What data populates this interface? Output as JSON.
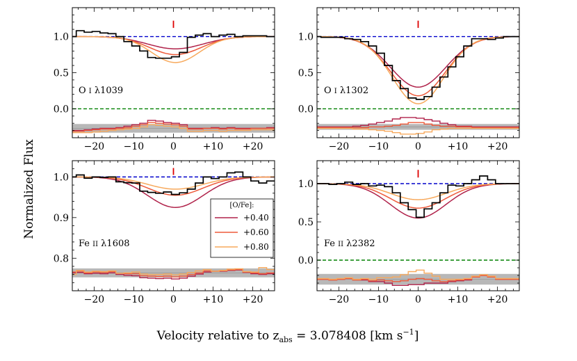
{
  "figure": {
    "ylabel": "Normalized Flux",
    "xlabel": "Velocity relative to z",
    "xlabel_sub": "abs",
    "xlabel_rest": " = 3.078408 [km s",
    "xlabel_sup": "−1",
    "xlabel_end": "]"
  },
  "legend": {
    "title": "[O/Fe]:",
    "entries": [
      "+0.40",
      "+0.60",
      "+0.80"
    ]
  },
  "colors": {
    "data": "#000000",
    "continuum": "#0000cc",
    "zero": "#008000",
    "marker": "#dd0000",
    "model_040": "#b0224a",
    "model_060": "#ee5a3a",
    "model_080": "#f7a95c",
    "residual_band": "#b8b8b8"
  },
  "chart_data": [
    {
      "type": "line",
      "panel": "O I 1039",
      "label_ion": "O ",
      "label_state": "I",
      "label_lambda": "λ1039",
      "xlim": [
        -25.5,
        25.5
      ],
      "ylim": [
        -0.4,
        1.4
      ],
      "yticks": [
        0.0,
        0.5,
        1.0
      ],
      "ytick_labels": [
        "0.0",
        "0.5",
        "1.0"
      ],
      "xticks": [
        -20,
        -10,
        0,
        10,
        20
      ],
      "xtick_labels": [
        "−20",
        "−10",
        "0",
        "+10",
        "+20"
      ],
      "continuum": 1.0,
      "zero": 0.0,
      "marker_v": 0,
      "marker_y": [
        1.12,
        1.22
      ],
      "data_x": [
        -25.5,
        -23.5,
        -21.5,
        -19.5,
        -17.5,
        -15.5,
        -13.5,
        -11.5,
        -9.5,
        -7.5,
        -5.5,
        -3.5,
        -1.5,
        0.5,
        2.5,
        4.5,
        6.5,
        8.5,
        10.5,
        12.5,
        14.5,
        16.5,
        18.5,
        20.5,
        22.5,
        24.5
      ],
      "data_y": [
        1.0,
        1.08,
        1.06,
        1.07,
        1.05,
        1.04,
        1.0,
        0.93,
        0.87,
        0.8,
        0.71,
        0.7,
        0.7,
        0.72,
        0.78,
        0.99,
        1.02,
        1.04,
        1.0,
        1.02,
        1.03,
        1.0,
        1.01,
        1.01,
        1.01,
        1.0
      ],
      "model_center": 0.5,
      "models": [
        {
          "name": "+0.40",
          "depth": 0.17,
          "sigma": 7.0
        },
        {
          "name": "+0.60",
          "depth": 0.25,
          "sigma": 6.5
        },
        {
          "name": "+0.80",
          "depth": 0.36,
          "sigma": 6.0
        }
      ],
      "residual_band": [
        -0.33,
        -0.21
      ],
      "residual_center": -0.27,
      "residuals": [
        {
          "name": "+0.40",
          "values": [
            -0.3,
            -0.3,
            -0.29,
            -0.28,
            -0.27,
            -0.27,
            -0.26,
            -0.24,
            -0.22,
            -0.2,
            -0.16,
            -0.17,
            -0.19,
            -0.2,
            -0.22,
            -0.27,
            -0.27,
            -0.27,
            -0.26,
            -0.27,
            -0.26,
            -0.27,
            -0.27,
            -0.27,
            -0.27,
            -0.26
          ]
        },
        {
          "name": "+0.60",
          "values": [
            -0.31,
            -0.31,
            -0.3,
            -0.29,
            -0.28,
            -0.28,
            -0.27,
            -0.26,
            -0.24,
            -0.22,
            -0.19,
            -0.2,
            -0.21,
            -0.22,
            -0.24,
            -0.28,
            -0.28,
            -0.27,
            -0.27,
            -0.28,
            -0.27,
            -0.28,
            -0.28,
            -0.27,
            -0.27,
            -0.27
          ]
        },
        {
          "name": "+0.80",
          "values": [
            -0.33,
            -0.33,
            -0.33,
            -0.32,
            -0.31,
            -0.3,
            -0.29,
            -0.28,
            -0.27,
            -0.25,
            -0.22,
            -0.23,
            -0.24,
            -0.25,
            -0.27,
            -0.31,
            -0.31,
            -0.3,
            -0.3,
            -0.31,
            -0.3,
            -0.3,
            -0.3,
            -0.29,
            -0.29,
            -0.29
          ]
        }
      ]
    },
    {
      "type": "line",
      "panel": "O I 1302",
      "label_ion": "O ",
      "label_state": "I",
      "label_lambda": "λ1302",
      "xlim": [
        -25.5,
        25.5
      ],
      "ylim": [
        -0.4,
        1.4
      ],
      "yticks": [
        0.0,
        0.5,
        1.0
      ],
      "ytick_labels": [
        "0.0",
        "0.5",
        "1.0"
      ],
      "xticks": [
        -20,
        -10,
        0,
        10,
        20
      ],
      "xtick_labels": [
        "−20",
        "−10",
        "0",
        "+10",
        "+20"
      ],
      "continuum": 1.0,
      "zero": 0.0,
      "marker_v": 0,
      "marker_y": [
        1.12,
        1.22
      ],
      "data_x": [
        -25.5,
        -23.5,
        -21.5,
        -19.5,
        -17.5,
        -15.5,
        -13.5,
        -11.5,
        -9.5,
        -7.5,
        -5.5,
        -3.5,
        -1.5,
        0.5,
        2.5,
        4.5,
        6.5,
        8.5,
        10.5,
        12.5,
        14.5,
        16.5,
        18.5,
        20.5,
        22.5,
        24.5
      ],
      "data_y": [
        1.0,
        0.99,
        0.99,
        0.99,
        0.97,
        0.96,
        0.93,
        0.87,
        0.77,
        0.6,
        0.39,
        0.28,
        0.15,
        0.13,
        0.17,
        0.3,
        0.44,
        0.58,
        0.72,
        0.87,
        0.97,
        0.97,
        0.96,
        0.98,
        1.0,
        1.0
      ],
      "model_center": 0.0,
      "models": [
        {
          "name": "+0.40",
          "depth": 0.7,
          "sigma": 7.0
        },
        {
          "name": "+0.60",
          "depth": 0.82,
          "sigma": 6.8
        },
        {
          "name": "+0.80",
          "depth": 0.93,
          "sigma": 6.5
        }
      ],
      "residual_band": [
        -0.29,
        -0.21
      ],
      "residual_center": -0.25,
      "residuals": [
        {
          "name": "+0.40",
          "values": [
            -0.25,
            -0.25,
            -0.25,
            -0.25,
            -0.25,
            -0.24,
            -0.23,
            -0.21,
            -0.19,
            -0.17,
            -0.14,
            -0.12,
            -0.12,
            -0.13,
            -0.15,
            -0.17,
            -0.2,
            -0.22,
            -0.24,
            -0.24,
            -0.25,
            -0.25,
            -0.25,
            -0.25,
            -0.25,
            -0.25
          ]
        },
        {
          "name": "+0.60",
          "values": [
            -0.26,
            -0.26,
            -0.26,
            -0.26,
            -0.26,
            -0.26,
            -0.26,
            -0.25,
            -0.25,
            -0.24,
            -0.23,
            -0.21,
            -0.19,
            -0.19,
            -0.21,
            -0.23,
            -0.24,
            -0.24,
            -0.25,
            -0.25,
            -0.26,
            -0.26,
            -0.26,
            -0.26,
            -0.26,
            -0.26
          ]
        },
        {
          "name": "+0.80",
          "values": [
            -0.27,
            -0.27,
            -0.27,
            -0.27,
            -0.27,
            -0.28,
            -0.28,
            -0.29,
            -0.3,
            -0.31,
            -0.33,
            -0.35,
            -0.35,
            -0.34,
            -0.32,
            -0.29,
            -0.28,
            -0.27,
            -0.27,
            -0.27,
            -0.27,
            -0.27,
            -0.27,
            -0.27,
            -0.27,
            -0.27
          ]
        }
      ]
    },
    {
      "type": "line",
      "panel": "Fe II 1608",
      "label_ion": "Fe ",
      "label_state": "II",
      "label_lambda": "λ1608",
      "xlim": [
        -25.5,
        25.5
      ],
      "ylim": [
        0.72,
        1.04
      ],
      "yticks": [
        0.8,
        0.9,
        1.0
      ],
      "ytick_labels": [
        "0.8",
        "0.9",
        "1.0"
      ],
      "xticks": [
        -20,
        -10,
        0,
        10,
        20
      ],
      "xtick_labels": [
        "−20",
        "−10",
        "0",
        "+10",
        "+20"
      ],
      "continuum": 1.0,
      "zero": null,
      "marker_v": 0,
      "marker_y": [
        1.005,
        1.022
      ],
      "data_x": [
        -25.5,
        -23.5,
        -21.5,
        -19.5,
        -17.5,
        -15.5,
        -13.5,
        -11.5,
        -9.5,
        -7.5,
        -5.5,
        -3.5,
        -1.5,
        0.5,
        2.5,
        4.5,
        6.5,
        8.5,
        10.5,
        12.5,
        14.5,
        16.5,
        18.5,
        20.5,
        22.5,
        24.5
      ],
      "data_y": [
        1.0,
        1.005,
        0.997,
        1.0,
        0.999,
        1.0,
        0.988,
        0.986,
        0.985,
        0.965,
        0.962,
        0.96,
        0.963,
        0.957,
        0.961,
        0.97,
        0.985,
        1.0,
        0.996,
        1.0,
        1.01,
        1.012,
        1.0,
        0.99,
        0.985,
        0.99
      ],
      "model_center": 0.5,
      "models": [
        {
          "name": "+0.40",
          "depth": 0.075,
          "sigma": 7.0
        },
        {
          "name": "+0.60",
          "depth": 0.045,
          "sigma": 7.0
        },
        {
          "name": "+0.80",
          "depth": 0.03,
          "sigma": 7.0
        }
      ],
      "residual_band": [
        0.753,
        0.775
      ],
      "residual_center": 0.764,
      "residuals": [
        {
          "name": "+0.40",
          "values": [
            0.764,
            0.765,
            0.762,
            0.763,
            0.762,
            0.764,
            0.76,
            0.758,
            0.757,
            0.752,
            0.751,
            0.75,
            0.751,
            0.749,
            0.751,
            0.756,
            0.761,
            0.766,
            0.768,
            0.768,
            0.77,
            0.771,
            0.765,
            0.762,
            0.76,
            0.762
          ]
        },
        {
          "name": "+0.60",
          "values": [
            0.766,
            0.768,
            0.764,
            0.766,
            0.765,
            0.767,
            0.763,
            0.762,
            0.762,
            0.757,
            0.756,
            0.755,
            0.756,
            0.754,
            0.756,
            0.76,
            0.764,
            0.769,
            0.768,
            0.769,
            0.771,
            0.772,
            0.766,
            0.764,
            0.762,
            0.764
          ]
        },
        {
          "name": "+0.80",
          "values": [
            0.76,
            0.77,
            0.766,
            0.768,
            0.767,
            0.769,
            0.763,
            0.764,
            0.766,
            0.761,
            0.76,
            0.76,
            0.761,
            0.759,
            0.761,
            0.765,
            0.769,
            0.772,
            0.768,
            0.77,
            0.773,
            0.774,
            0.767,
            0.766,
            0.777,
            0.772
          ]
        }
      ]
    },
    {
      "type": "line",
      "panel": "Fe II 2382",
      "label_ion": "Fe ",
      "label_state": "II",
      "label_lambda": "λ2382",
      "xlim": [
        -25.5,
        25.5
      ],
      "ylim": [
        -0.4,
        1.3
      ],
      "yticks": [
        0.0,
        0.5,
        1.0
      ],
      "ytick_labels": [
        "0.0",
        "0.5",
        "1.0"
      ],
      "xticks": [
        -20,
        -10,
        0,
        10,
        20
      ],
      "xtick_labels": [
        "−20",
        "−10",
        "0",
        "+10",
        "+20"
      ],
      "continuum": 1.0,
      "zero": 0.0,
      "marker_v": 0,
      "marker_y": [
        1.08,
        1.18
      ],
      "data_x": [
        -25.5,
        -23.5,
        -21.5,
        -19.5,
        -17.5,
        -15.5,
        -13.5,
        -11.5,
        -9.5,
        -7.5,
        -5.5,
        -3.5,
        -1.5,
        0.5,
        2.5,
        4.5,
        6.5,
        8.5,
        10.5,
        12.5,
        14.5,
        16.5,
        18.5,
        20.5,
        22.5,
        24.5
      ],
      "data_y": [
        1.0,
        1.0,
        0.99,
        1.0,
        1.02,
        0.99,
        1.0,
        0.97,
        0.98,
        0.96,
        0.88,
        0.75,
        0.66,
        0.56,
        0.67,
        0.75,
        0.88,
        0.98,
        0.97,
        1.0,
        1.05,
        1.1,
        1.05,
        1.0,
        1.0,
        1.0
      ],
      "model_center": 0.0,
      "models": [
        {
          "name": "+0.40",
          "depth": 0.45,
          "sigma": 7.0
        },
        {
          "name": "+0.60",
          "depth": 0.32,
          "sigma": 7.0
        },
        {
          "name": "+0.80",
          "depth": 0.21,
          "sigma": 7.0
        }
      ],
      "residual_band": [
        -0.32,
        -0.18
      ],
      "residual_center": -0.25,
      "residuals": [
        {
          "name": "+0.40",
          "values": [
            -0.25,
            -0.25,
            -0.26,
            -0.25,
            -0.24,
            -0.26,
            -0.26,
            -0.28,
            -0.28,
            -0.3,
            -0.33,
            -0.33,
            -0.32,
            -0.32,
            -0.3,
            -0.3,
            -0.3,
            -0.28,
            -0.27,
            -0.26,
            -0.22,
            -0.2,
            -0.22,
            -0.25,
            -0.25,
            -0.25
          ]
        },
        {
          "name": "+0.60",
          "values": [
            -0.25,
            -0.25,
            -0.26,
            -0.25,
            -0.24,
            -0.26,
            -0.25,
            -0.27,
            -0.26,
            -0.27,
            -0.28,
            -0.27,
            -0.25,
            -0.24,
            -0.25,
            -0.27,
            -0.28,
            -0.27,
            -0.26,
            -0.25,
            -0.22,
            -0.2,
            -0.22,
            -0.25,
            -0.25,
            -0.25
          ]
        },
        {
          "name": "+0.80",
          "values": [
            -0.24,
            -0.24,
            -0.25,
            -0.24,
            -0.23,
            -0.25,
            -0.24,
            -0.25,
            -0.23,
            -0.23,
            -0.22,
            -0.19,
            -0.15,
            -0.13,
            -0.17,
            -0.21,
            -0.25,
            -0.25,
            -0.25,
            -0.24,
            -0.21,
            -0.19,
            -0.21,
            -0.24,
            -0.24,
            -0.24
          ]
        }
      ]
    }
  ]
}
